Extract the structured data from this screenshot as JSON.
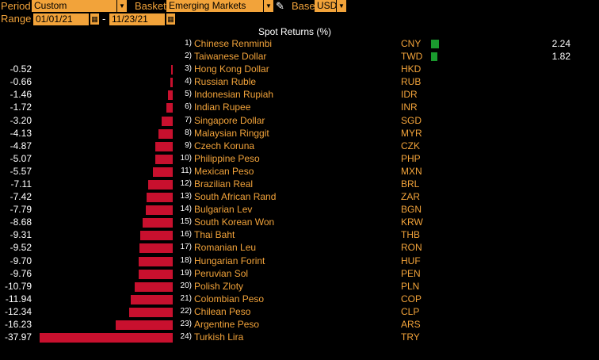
{
  "toolbar": {
    "period_label": "Period",
    "period_value": "Custom",
    "basket_label": "Basket",
    "basket_value": "Emerging Markets",
    "base_label": "Base",
    "base_value": "USD",
    "range_label": "Range",
    "range_start": "01/01/21",
    "range_dash": "-",
    "range_end": "11/23/21"
  },
  "table": {
    "header": "Spot Returns (%)",
    "rows": [
      {
        "rank": "1)",
        "name": "Chinese Renminbi",
        "code": "CNY",
        "value": "2.24",
        "num": 2.24
      },
      {
        "rank": "2)",
        "name": "Taiwanese Dollar",
        "code": "TWD",
        "value": "1.82",
        "num": 1.82
      },
      {
        "rank": "3)",
        "name": "Hong Kong Dollar",
        "code": "HKD",
        "value": "-0.52",
        "num": -0.52
      },
      {
        "rank": "4)",
        "name": "Russian Ruble",
        "code": "RUB",
        "value": "-0.66",
        "num": -0.66
      },
      {
        "rank": "5)",
        "name": "Indonesian Rupiah",
        "code": "IDR",
        "value": "-1.46",
        "num": -1.46
      },
      {
        "rank": "6)",
        "name": "Indian Rupee",
        "code": "INR",
        "value": "-1.72",
        "num": -1.72
      },
      {
        "rank": "7)",
        "name": "Singapore Dollar",
        "code": "SGD",
        "value": "-3.20",
        "num": -3.2
      },
      {
        "rank": "8)",
        "name": "Malaysian Ringgit",
        "code": "MYR",
        "value": "-4.13",
        "num": -4.13
      },
      {
        "rank": "9)",
        "name": "Czech Koruna",
        "code": "CZK",
        "value": "-4.87",
        "num": -4.87
      },
      {
        "rank": "10)",
        "name": "Philippine Peso",
        "code": "PHP",
        "value": "-5.07",
        "num": -5.07
      },
      {
        "rank": "11)",
        "name": "Mexican Peso",
        "code": "MXN",
        "value": "-5.57",
        "num": -5.57
      },
      {
        "rank": "12)",
        "name": "Brazilian Real",
        "code": "BRL",
        "value": "-7.11",
        "num": -7.11
      },
      {
        "rank": "13)",
        "name": "South African Rand",
        "code": "ZAR",
        "value": "-7.42",
        "num": -7.42
      },
      {
        "rank": "14)",
        "name": "Bulgarian Lev",
        "code": "BGN",
        "value": "-7.79",
        "num": -7.79
      },
      {
        "rank": "15)",
        "name": "South Korean Won",
        "code": "KRW",
        "value": "-8.68",
        "num": -8.68
      },
      {
        "rank": "16)",
        "name": "Thai Baht",
        "code": "THB",
        "value": "-9.31",
        "num": -9.31
      },
      {
        "rank": "17)",
        "name": "Romanian Leu",
        "code": "RON",
        "value": "-9.52",
        "num": -9.52
      },
      {
        "rank": "18)",
        "name": "Hungarian Forint",
        "code": "HUF",
        "value": "-9.70",
        "num": -9.7
      },
      {
        "rank": "19)",
        "name": "Peruvian Sol",
        "code": "PEN",
        "value": "-9.76",
        "num": -9.76
      },
      {
        "rank": "20)",
        "name": "Polish Zloty",
        "code": "PLN",
        "value": "-10.79",
        "num": -10.79
      },
      {
        "rank": "21)",
        "name": "Colombian Peso",
        "code": "COP",
        "value": "-11.94",
        "num": -11.94
      },
      {
        "rank": "22)",
        "name": "Chilean Peso",
        "code": "CLP",
        "value": "-12.34",
        "num": -12.34
      },
      {
        "rank": "23)",
        "name": "Argentine Peso",
        "code": "ARS",
        "value": "-16.23",
        "num": -16.23
      },
      {
        "rank": "24)",
        "name": "Turkish Lira",
        "code": "TRY",
        "value": "-37.97",
        "num": -37.97
      }
    ]
  },
  "colors": {
    "accent": "#f2a33a",
    "negative_bar": "#c8102e",
    "positive_bar": "#1a9a2e",
    "background": "#000000"
  },
  "icons": {
    "dropdown": "chevron-down-icon",
    "calendar": "calendar-icon",
    "edit": "pencil-icon"
  }
}
